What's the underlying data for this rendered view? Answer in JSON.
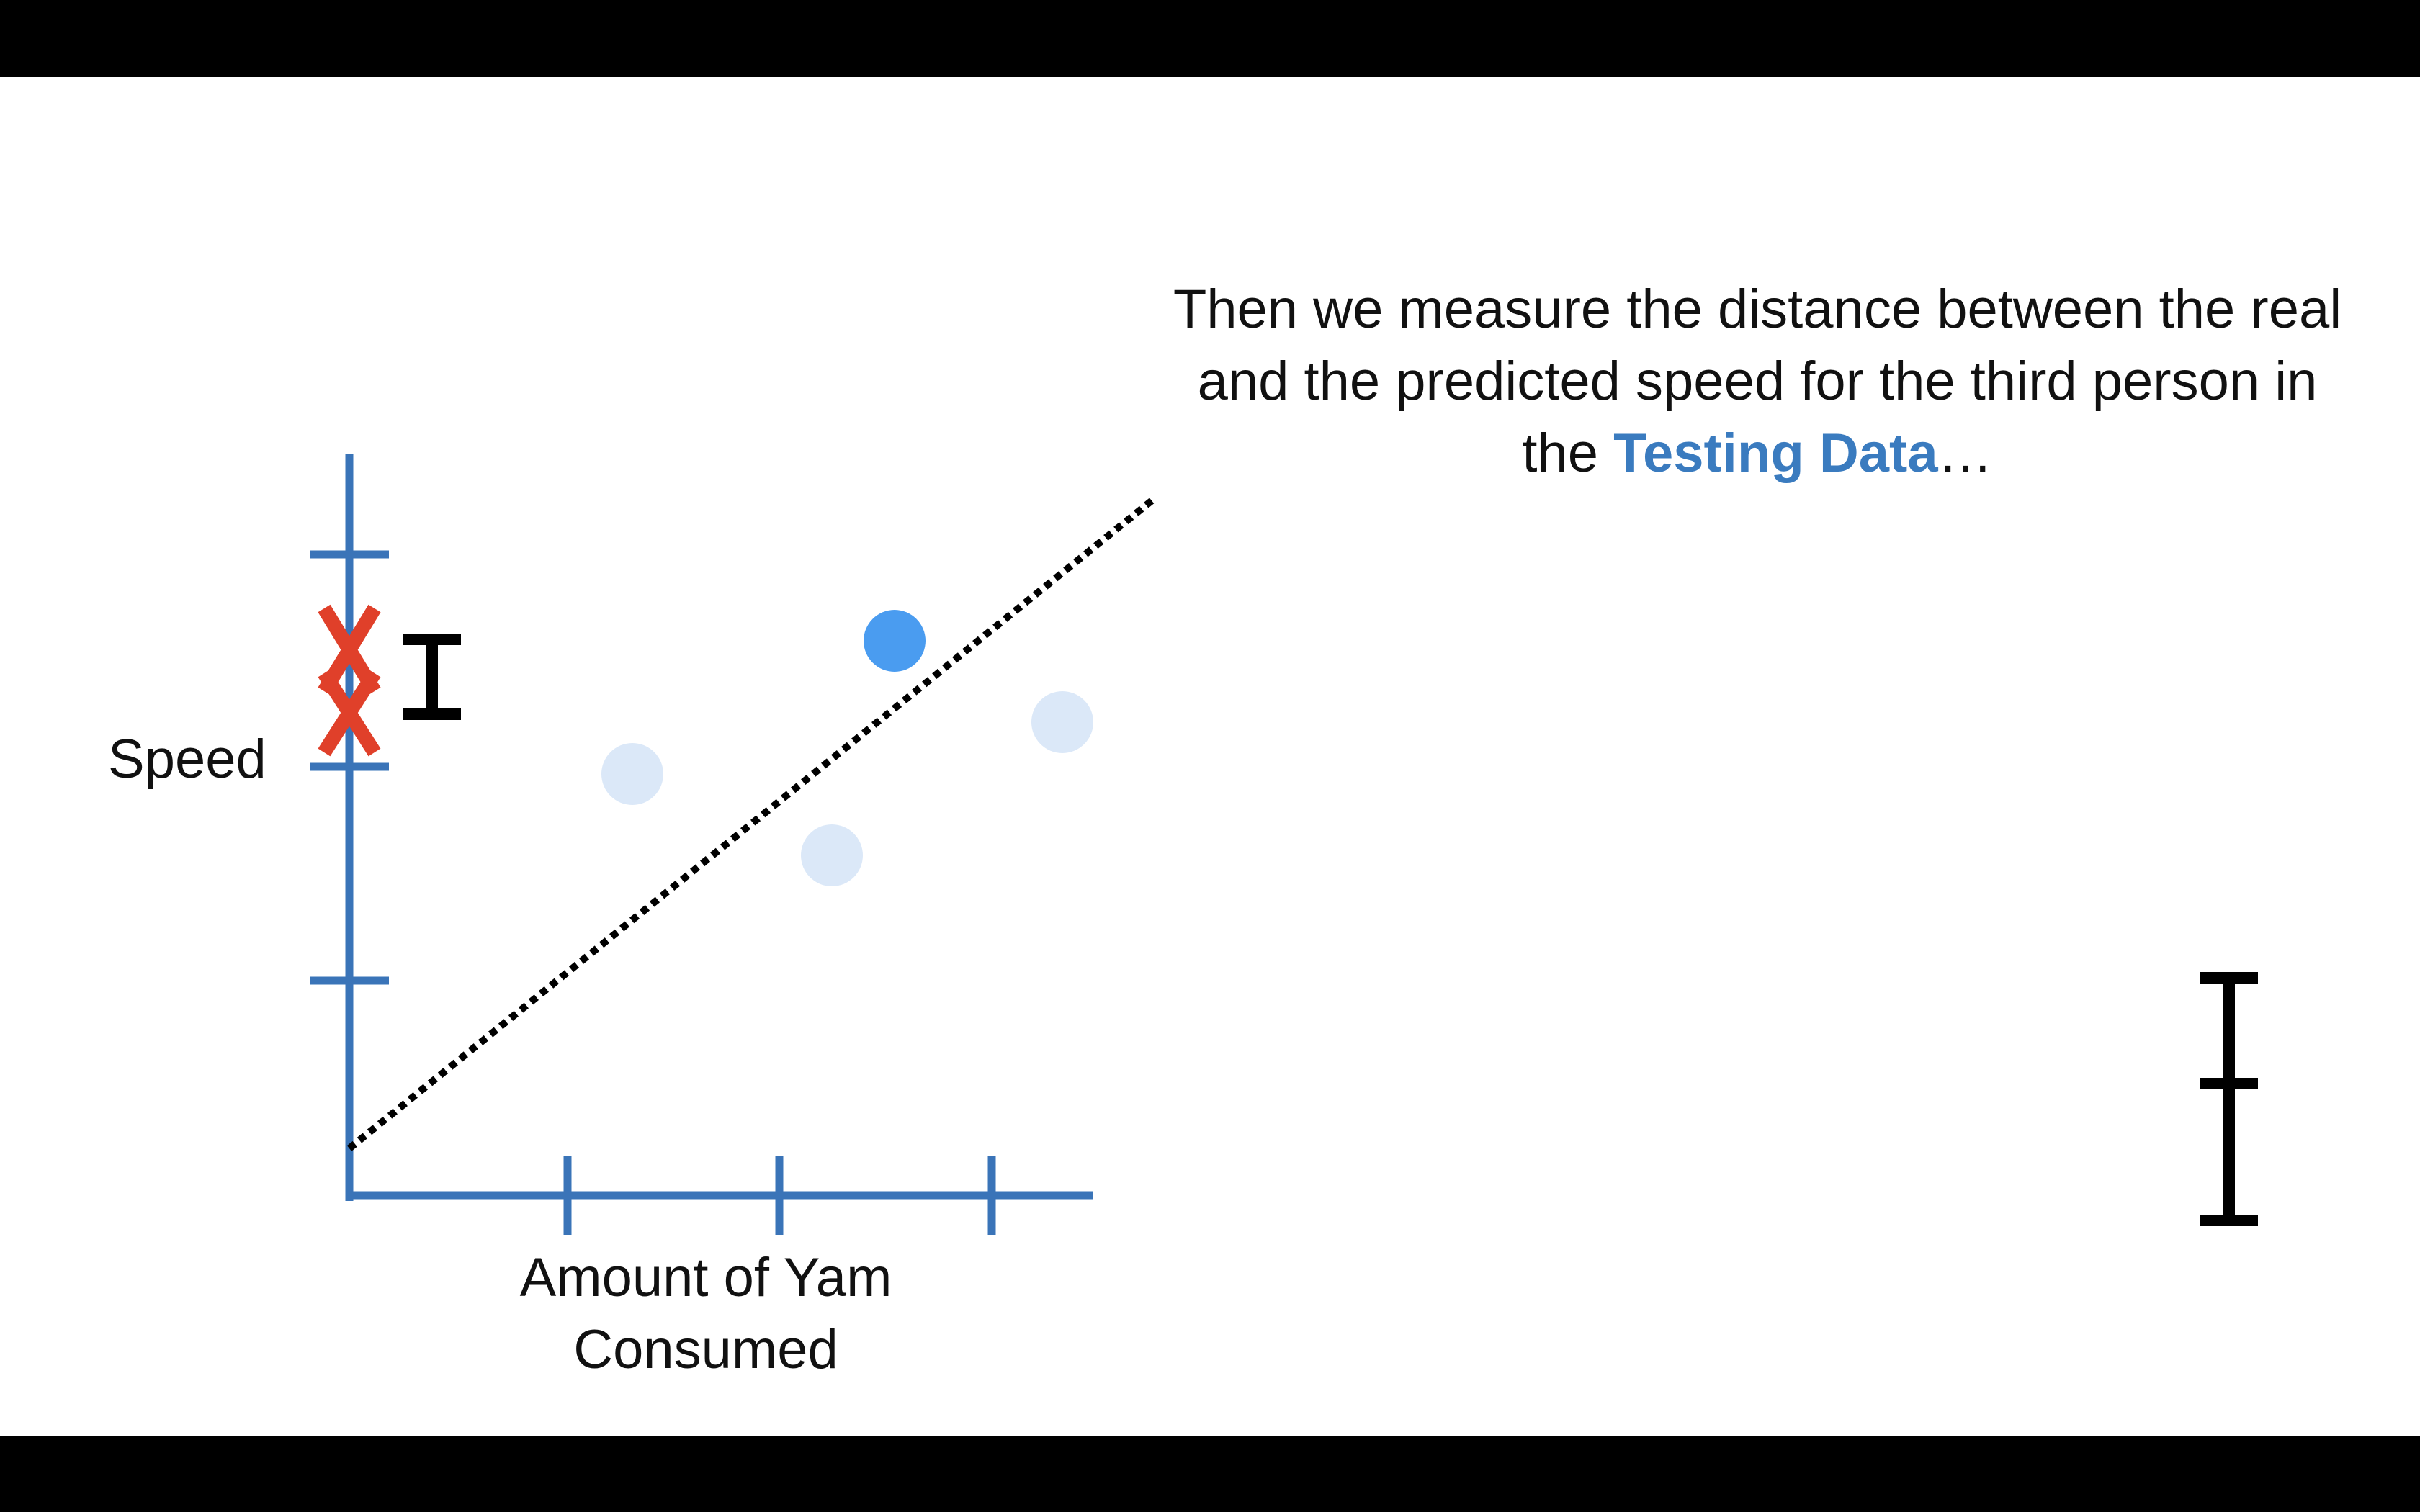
{
  "caption": {
    "prefix": "Then we measure the distance between the real and the predicted speed for the third person in the ",
    "highlight": "Testing Data",
    "suffix": "…"
  },
  "chart_data": {
    "type": "scatter",
    "xlabel": "Amount of Yam Consumed",
    "ylabel": "Speed",
    "x_ticks": 3,
    "y_ticks": 3,
    "fit_line": {
      "style": "dotted",
      "color": "#000000"
    },
    "points": [
      {
        "role": "highlighted",
        "color": "#4a9cf0"
      },
      {
        "role": "faded",
        "color": "#dbe8f8"
      },
      {
        "role": "faded",
        "color": "#dbe8f8"
      },
      {
        "role": "faded",
        "color": "#dbe8f8"
      }
    ],
    "markers": [
      {
        "kind": "x-mark",
        "color": "#e0402a"
      },
      {
        "kind": "x-mark",
        "color": "#e0402a"
      }
    ],
    "axis_color": "#3a74b8"
  },
  "legend": {
    "stacked_bar_icon": "stacked-error-bar-icon"
  }
}
